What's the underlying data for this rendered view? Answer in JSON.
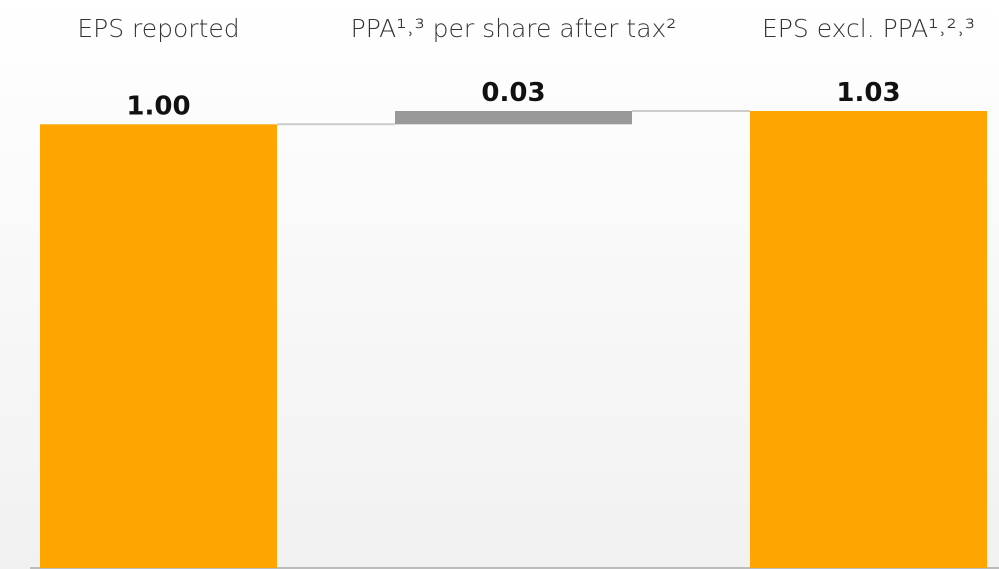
{
  "chart_data": {
    "type": "waterfall",
    "categories": [
      "EPS reported",
      "PPA¹˒³ per share after tax²",
      "EPS excl. PPA¹˒²˒³"
    ],
    "values": [
      1.0,
      0.03,
      1.03
    ],
    "value_labels": [
      "1.00",
      "0.03",
      "1.03"
    ],
    "measure": [
      "total",
      "relative",
      "total"
    ],
    "colors": [
      "#ffa500",
      "#999999",
      "#ffa500"
    ]
  }
}
